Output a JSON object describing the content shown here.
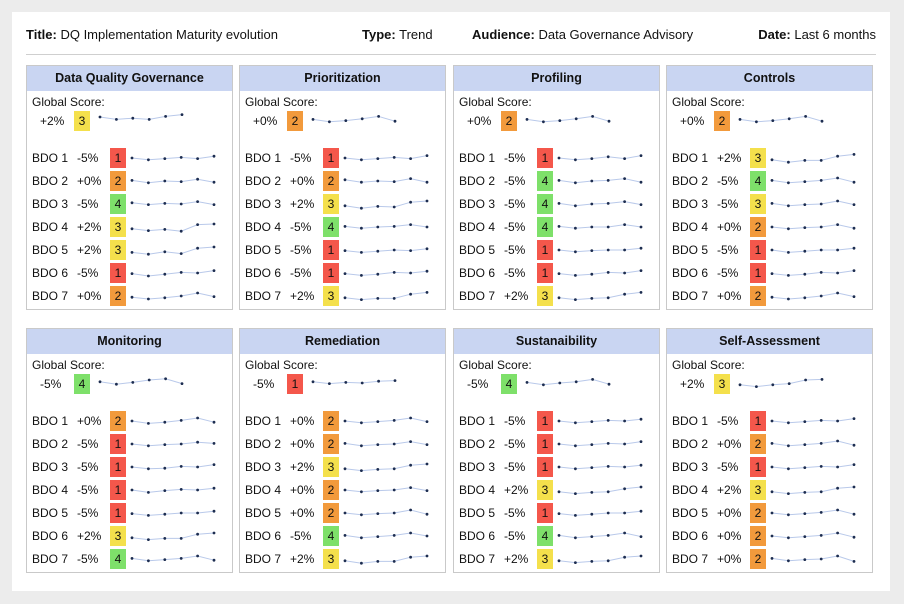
{
  "header": {
    "title_label": "Title:",
    "title": "DQ Implementation Maturity evolution",
    "type_label": "Type:",
    "type": "Trend",
    "audience_label": "Audience:",
    "audience": "Data Governance Advisory",
    "date_label": "Date:",
    "date": "Last 6 months"
  },
  "colors": {
    "1": "#f4574b",
    "2": "#f29a3c",
    "3": "#f4e04c",
    "4": "#7ee06a"
  },
  "panels": [
    {
      "title": "Data Quality Governance",
      "global_label": "Global Score:",
      "global": {
        "pct": "+2%",
        "score": "3",
        "trend": [
          0.75,
          0.55,
          0.65,
          0.55,
          0.8,
          0.95
        ]
      },
      "rows": [
        {
          "label": "BDO 1",
          "pct": "-5%",
          "score": "1",
          "trend": [
            0.5,
            0.35,
            0.45,
            0.55,
            0.45,
            0.65
          ]
        },
        {
          "label": "BDO 2",
          "pct": "+0%",
          "score": "2",
          "trend": [
            0.55,
            0.35,
            0.5,
            0.45,
            0.65,
            0.4
          ]
        },
        {
          "label": "BDO 3",
          "pct": "-5%",
          "score": "4",
          "trend": [
            0.6,
            0.45,
            0.55,
            0.5,
            0.7,
            0.45
          ]
        },
        {
          "label": "BDO 4",
          "pct": "+2%",
          "score": "3",
          "trend": [
            0.35,
            0.2,
            0.3,
            0.15,
            0.7,
            0.75
          ]
        },
        {
          "label": "BDO 5",
          "pct": "+2%",
          "score": "3",
          "trend": [
            0.3,
            0.15,
            0.35,
            0.2,
            0.65,
            0.75
          ]
        },
        {
          "label": "BDO 6",
          "pct": "-5%",
          "score": "1",
          "trend": [
            0.45,
            0.25,
            0.4,
            0.55,
            0.5,
            0.7
          ]
        },
        {
          "label": "BDO 7",
          "pct": "+0%",
          "score": "2",
          "trend": [
            0.4,
            0.25,
            0.35,
            0.5,
            0.75,
            0.45
          ]
        }
      ]
    },
    {
      "title": "Prioritization",
      "global_label": "Global Score:",
      "global": {
        "pct": "+0%",
        "score": "2",
        "trend": [
          0.55,
          0.35,
          0.45,
          0.6,
          0.8,
          0.4
        ]
      },
      "rows": [
        {
          "label": "BDO 1",
          "pct": "-5%",
          "score": "1",
          "trend": [
            0.5,
            0.35,
            0.45,
            0.55,
            0.45,
            0.7
          ]
        },
        {
          "label": "BDO 2",
          "pct": "+0%",
          "score": "2",
          "trend": [
            0.6,
            0.4,
            0.5,
            0.45,
            0.7,
            0.4
          ]
        },
        {
          "label": "BDO 3",
          "pct": "+2%",
          "score": "3",
          "trend": [
            0.35,
            0.15,
            0.3,
            0.25,
            0.65,
            0.75
          ]
        },
        {
          "label": "BDO 4",
          "pct": "-5%",
          "score": "4",
          "trend": [
            0.55,
            0.4,
            0.5,
            0.55,
            0.7,
            0.5
          ]
        },
        {
          "label": "BDO 5",
          "pct": "-5%",
          "score": "1",
          "trend": [
            0.45,
            0.3,
            0.4,
            0.5,
            0.45,
            0.6
          ]
        },
        {
          "label": "BDO 6",
          "pct": "-5%",
          "score": "1",
          "trend": [
            0.45,
            0.3,
            0.4,
            0.55,
            0.5,
            0.65
          ]
        },
        {
          "label": "BDO 7",
          "pct": "+2%",
          "score": "3",
          "trend": [
            0.35,
            0.2,
            0.3,
            0.3,
            0.65,
            0.8
          ]
        }
      ]
    },
    {
      "title": "Profiling",
      "global_label": "Global Score:",
      "global": {
        "pct": "+0%",
        "score": "2",
        "trend": [
          0.55,
          0.35,
          0.45,
          0.6,
          0.8,
          0.4
        ]
      },
      "rows": [
        {
          "label": "BDO 1",
          "pct": "-5%",
          "score": "1",
          "trend": [
            0.5,
            0.35,
            0.45,
            0.6,
            0.45,
            0.7
          ]
        },
        {
          "label": "BDO 2",
          "pct": "-5%",
          "score": "4",
          "trend": [
            0.55,
            0.35,
            0.5,
            0.55,
            0.7,
            0.4
          ]
        },
        {
          "label": "BDO 3",
          "pct": "-5%",
          "score": "4",
          "trend": [
            0.55,
            0.35,
            0.5,
            0.55,
            0.7,
            0.45
          ]
        },
        {
          "label": "BDO 4",
          "pct": "-5%",
          "score": "4",
          "trend": [
            0.55,
            0.4,
            0.5,
            0.5,
            0.7,
            0.5
          ]
        },
        {
          "label": "BDO 5",
          "pct": "-5%",
          "score": "1",
          "trend": [
            0.5,
            0.35,
            0.45,
            0.5,
            0.5,
            0.65
          ]
        },
        {
          "label": "BDO 6",
          "pct": "-5%",
          "score": "1",
          "trend": [
            0.45,
            0.3,
            0.4,
            0.55,
            0.5,
            0.7
          ]
        },
        {
          "label": "BDO 7",
          "pct": "+2%",
          "score": "3",
          "trend": [
            0.35,
            0.2,
            0.3,
            0.35,
            0.65,
            0.8
          ]
        }
      ]
    },
    {
      "title": "Controls",
      "global_label": "Global Score:",
      "global": {
        "pct": "+0%",
        "score": "2",
        "trend": [
          0.55,
          0.35,
          0.45,
          0.6,
          0.8,
          0.4
        ]
      },
      "rows": [
        {
          "label": "BDO 1",
          "pct": "+2%",
          "score": "3",
          "trend": [
            0.35,
            0.15,
            0.3,
            0.3,
            0.65,
            0.8
          ]
        },
        {
          "label": "BDO 2",
          "pct": "-5%",
          "score": "4",
          "trend": [
            0.55,
            0.35,
            0.45,
            0.55,
            0.75,
            0.4
          ]
        },
        {
          "label": "BDO 3",
          "pct": "-5%",
          "score": "3",
          "trend": [
            0.55,
            0.35,
            0.45,
            0.5,
            0.75,
            0.45
          ]
        },
        {
          "label": "BDO 4",
          "pct": "+0%",
          "score": "2",
          "trend": [
            0.5,
            0.35,
            0.45,
            0.5,
            0.7,
            0.4
          ]
        },
        {
          "label": "BDO 5",
          "pct": "-5%",
          "score": "1",
          "trend": [
            0.5,
            0.3,
            0.4,
            0.5,
            0.5,
            0.65
          ]
        },
        {
          "label": "BDO 6",
          "pct": "-5%",
          "score": "1",
          "trend": [
            0.45,
            0.3,
            0.4,
            0.55,
            0.5,
            0.7
          ]
        },
        {
          "label": "BDO 7",
          "pct": "+0%",
          "score": "2",
          "trend": [
            0.4,
            0.25,
            0.35,
            0.5,
            0.75,
            0.45
          ]
        }
      ]
    },
    {
      "title": "Monitoring",
      "global_label": "Global Score:",
      "global": {
        "pct": "-5%",
        "score": "4",
        "trend": [
          0.6,
          0.4,
          0.55,
          0.75,
          0.85,
          0.45
        ]
      },
      "rows": [
        {
          "label": "BDO 1",
          "pct": "+0%",
          "score": "2",
          "trend": [
            0.5,
            0.3,
            0.4,
            0.55,
            0.75,
            0.4
          ]
        },
        {
          "label": "BDO 2",
          "pct": "-5%",
          "score": "1",
          "trend": [
            0.5,
            0.35,
            0.45,
            0.5,
            0.65,
            0.55
          ]
        },
        {
          "label": "BDO 3",
          "pct": "-5%",
          "score": "1",
          "trend": [
            0.5,
            0.35,
            0.4,
            0.55,
            0.5,
            0.7
          ]
        },
        {
          "label": "BDO 4",
          "pct": "-5%",
          "score": "1",
          "trend": [
            0.5,
            0.3,
            0.45,
            0.55,
            0.5,
            0.65
          ]
        },
        {
          "label": "BDO 5",
          "pct": "-5%",
          "score": "1",
          "trend": [
            0.45,
            0.3,
            0.4,
            0.5,
            0.5,
            0.65
          ]
        },
        {
          "label": "BDO 6",
          "pct": "+2%",
          "score": "3",
          "trend": [
            0.35,
            0.2,
            0.3,
            0.3,
            0.65,
            0.75
          ]
        },
        {
          "label": "BDO 7",
          "pct": "-5%",
          "score": "4",
          "trend": [
            0.55,
            0.35,
            0.45,
            0.55,
            0.75,
            0.4
          ]
        }
      ]
    },
    {
      "title": "Remediation",
      "global_label": "Global Score:",
      "global": {
        "pct": "-5%",
        "score": "1",
        "trend": [
          0.6,
          0.45,
          0.55,
          0.5,
          0.65,
          0.7
        ]
      },
      "rows": [
        {
          "label": "BDO 1",
          "pct": "+0%",
          "score": "2",
          "trend": [
            0.5,
            0.35,
            0.45,
            0.55,
            0.75,
            0.45
          ]
        },
        {
          "label": "BDO 2",
          "pct": "+0%",
          "score": "2",
          "trend": [
            0.55,
            0.35,
            0.45,
            0.5,
            0.7,
            0.45
          ]
        },
        {
          "label": "BDO 3",
          "pct": "+2%",
          "score": "3",
          "trend": [
            0.35,
            0.2,
            0.3,
            0.35,
            0.65,
            0.75
          ]
        },
        {
          "label": "BDO 4",
          "pct": "+0%",
          "score": "2",
          "trend": [
            0.5,
            0.35,
            0.45,
            0.5,
            0.7,
            0.45
          ]
        },
        {
          "label": "BDO 5",
          "pct": "+0%",
          "score": "2",
          "trend": [
            0.5,
            0.35,
            0.45,
            0.5,
            0.75,
            0.4
          ]
        },
        {
          "label": "BDO 6",
          "pct": "-5%",
          "score": "4",
          "trend": [
            0.55,
            0.35,
            0.45,
            0.55,
            0.75,
            0.5
          ]
        },
        {
          "label": "BDO 7",
          "pct": "+2%",
          "score": "3",
          "trend": [
            0.35,
            0.15,
            0.3,
            0.3,
            0.65,
            0.75
          ]
        }
      ]
    },
    {
      "title": "Sustanaibility",
      "global_label": "Global Score:",
      "global": {
        "pct": "-5%",
        "score": "4",
        "trend": [
          0.55,
          0.35,
          0.5,
          0.6,
          0.8,
          0.4
        ]
      },
      "rows": [
        {
          "label": "BDO 1",
          "pct": "-5%",
          "score": "1",
          "trend": [
            0.5,
            0.35,
            0.45,
            0.55,
            0.5,
            0.65
          ]
        },
        {
          "label": "BDO 2",
          "pct": "-5%",
          "score": "1",
          "trend": [
            0.5,
            0.35,
            0.45,
            0.55,
            0.5,
            0.7
          ]
        },
        {
          "label": "BDO 3",
          "pct": "-5%",
          "score": "1",
          "trend": [
            0.5,
            0.35,
            0.45,
            0.55,
            0.5,
            0.65
          ]
        },
        {
          "label": "BDO 4",
          "pct": "+2%",
          "score": "3",
          "trend": [
            0.35,
            0.2,
            0.3,
            0.35,
            0.6,
            0.75
          ]
        },
        {
          "label": "BDO 5",
          "pct": "-5%",
          "score": "1",
          "trend": [
            0.45,
            0.3,
            0.4,
            0.5,
            0.5,
            0.65
          ]
        },
        {
          "label": "BDO 6",
          "pct": "-5%",
          "score": "4",
          "trend": [
            0.55,
            0.35,
            0.45,
            0.55,
            0.75,
            0.45
          ]
        },
        {
          "label": "BDO 7",
          "pct": "+2%",
          "score": "3",
          "trend": [
            0.35,
            0.2,
            0.3,
            0.35,
            0.65,
            0.75
          ]
        }
      ]
    },
    {
      "title": "Self-Assessment",
      "global_label": "Global Score:",
      "global": {
        "pct": "+2%",
        "score": "3",
        "trend": [
          0.35,
          0.2,
          0.35,
          0.45,
          0.75,
          0.8
        ]
      },
      "rows": [
        {
          "label": "BDO 1",
          "pct": "-5%",
          "score": "1",
          "trend": [
            0.5,
            0.35,
            0.45,
            0.55,
            0.5,
            0.7
          ]
        },
        {
          "label": "BDO 2",
          "pct": "+0%",
          "score": "2",
          "trend": [
            0.55,
            0.35,
            0.45,
            0.55,
            0.75,
            0.4
          ]
        },
        {
          "label": "BDO 3",
          "pct": "-5%",
          "score": "1",
          "trend": [
            0.5,
            0.35,
            0.45,
            0.55,
            0.5,
            0.7
          ]
        },
        {
          "label": "BDO 4",
          "pct": "+2%",
          "score": "3",
          "trend": [
            0.35,
            0.2,
            0.3,
            0.35,
            0.65,
            0.75
          ]
        },
        {
          "label": "BDO 5",
          "pct": "+0%",
          "score": "2",
          "trend": [
            0.5,
            0.35,
            0.45,
            0.55,
            0.75,
            0.4
          ]
        },
        {
          "label": "BDO 6",
          "pct": "+0%",
          "score": "2",
          "trend": [
            0.5,
            0.35,
            0.45,
            0.55,
            0.75,
            0.4
          ]
        },
        {
          "label": "BDO 7",
          "pct": "+0%",
          "score": "2",
          "trend": [
            0.55,
            0.35,
            0.45,
            0.5,
            0.75,
            0.3
          ]
        }
      ]
    }
  ]
}
